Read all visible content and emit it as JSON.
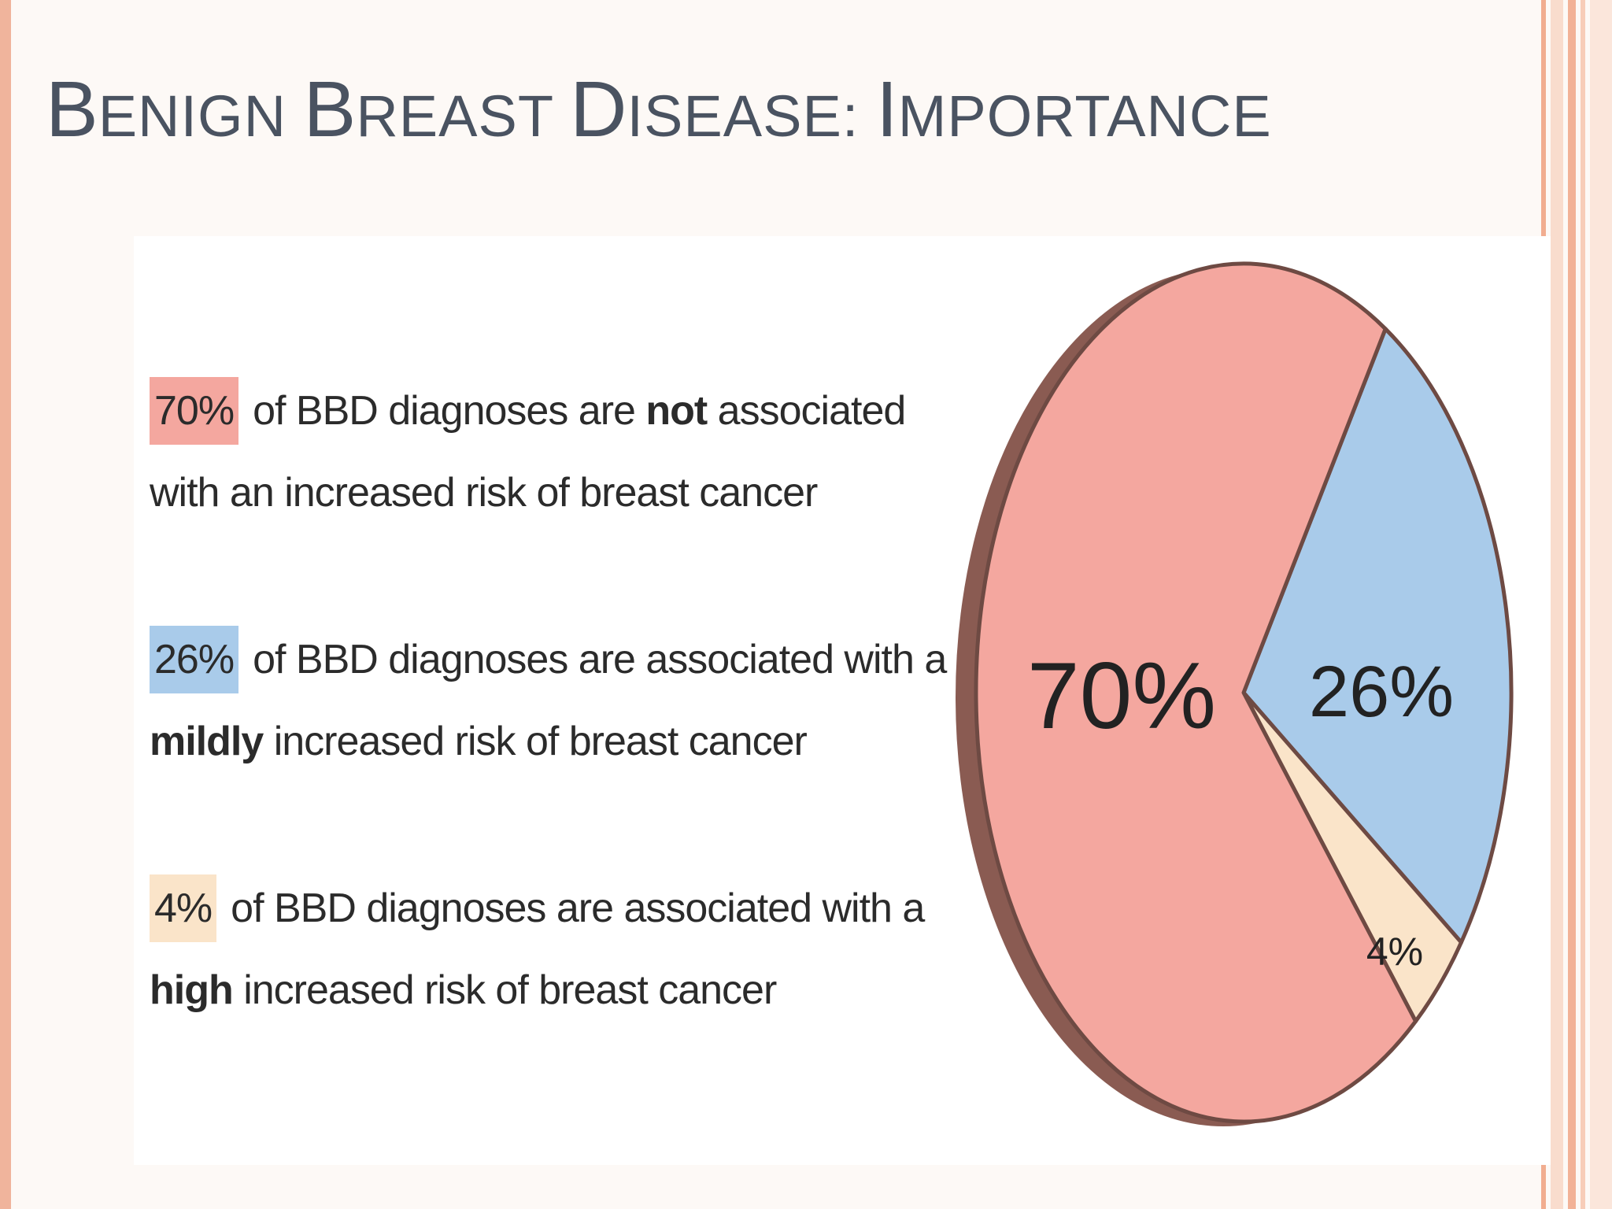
{
  "slide": {
    "title_parts": [
      {
        "cap": "B",
        "rest": "ENIGN "
      },
      {
        "cap": "B",
        "rest": "REAST "
      },
      {
        "cap": "D",
        "rest": "ISEASE: "
      },
      {
        "cap": "I",
        "rest": "MPORTANCE"
      }
    ]
  },
  "legend": [
    {
      "pct": "70%",
      "pre": "of BBD diagnoses are ",
      "bold": "not",
      "post": " associated",
      "line2_bold": "",
      "line2": "with an increased risk of breast cancer"
    },
    {
      "pct": "26%",
      "pre": "of BBD diagnoses are associated with a",
      "bold": "",
      "post": "",
      "line2_bold": "mildly",
      "line2": " increased risk of breast cancer"
    },
    {
      "pct": "4%",
      "pre": "of BBD diagnoses are associated with a",
      "bold": "",
      "post": "",
      "line2_bold": "high",
      "line2": " increased risk of breast cancer"
    }
  ],
  "colors": {
    "pink": "#f4a79f",
    "blue": "#a9cbea",
    "tan": "#fae4c9",
    "edge": "#6e4a43",
    "rim": "#8a5b52"
  },
  "chart_data": {
    "type": "pie",
    "title": "",
    "slices": [
      {
        "label": "70%",
        "value": 70,
        "color": "#f4a79f"
      },
      {
        "label": "26%",
        "value": 26,
        "color": "#a9cbea"
      },
      {
        "label": "4%",
        "value": 4,
        "color": "#fae4c9"
      }
    ]
  }
}
